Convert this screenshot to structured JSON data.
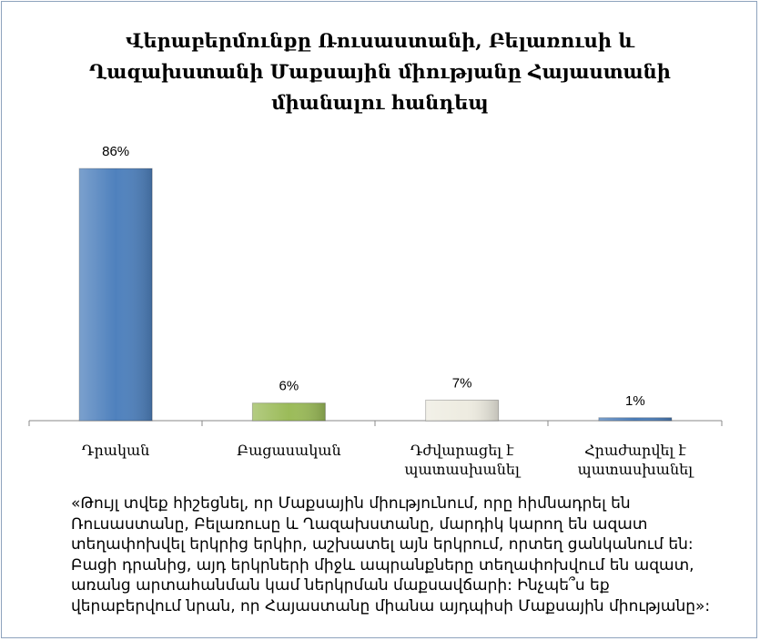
{
  "chart_data": {
    "type": "bar",
    "title": "Վերաբերմունքը Ռուսաստանի, Բելառուսի և Ղազախստանի Մաքսային միությանը Հայաստանի միանալու հանդեպ",
    "categories": [
      "Դրական",
      "Բացասական",
      "Դժվարացել է պատասխանել",
      "Հրաժարվել է պատասխանել"
    ],
    "values": [
      86,
      6,
      7,
      1
    ],
    "value_labels": [
      "86%",
      "6%",
      "7%",
      "1%"
    ],
    "colors": [
      "#4f81bd",
      "#9bbb59",
      "#eeece1",
      "#4f81bd"
    ],
    "footnote": "«Թույլ տվեք հիշեցնել, որ Մաքսային միությունում, որը  հիմնադրել են Ռուսաստանը, Բելառուսը և Ղազախստանը, մարդիկ կարող են ազատ տեղափոխվել երկրից երկիր, աշխատել այն երկրում, որտեղ ցանկանում են: Բացի դրանից, այդ երկրների միջև ապրանքները տեղափոխվում են ազատ, առանց արտահանման կամ ներկրման մաքսավճարի: Ինչպե՞ս եք վերաբերվում նրան, որ Հայաստանը միանա այդպիսի Մաքսային միությանը»:"
  }
}
